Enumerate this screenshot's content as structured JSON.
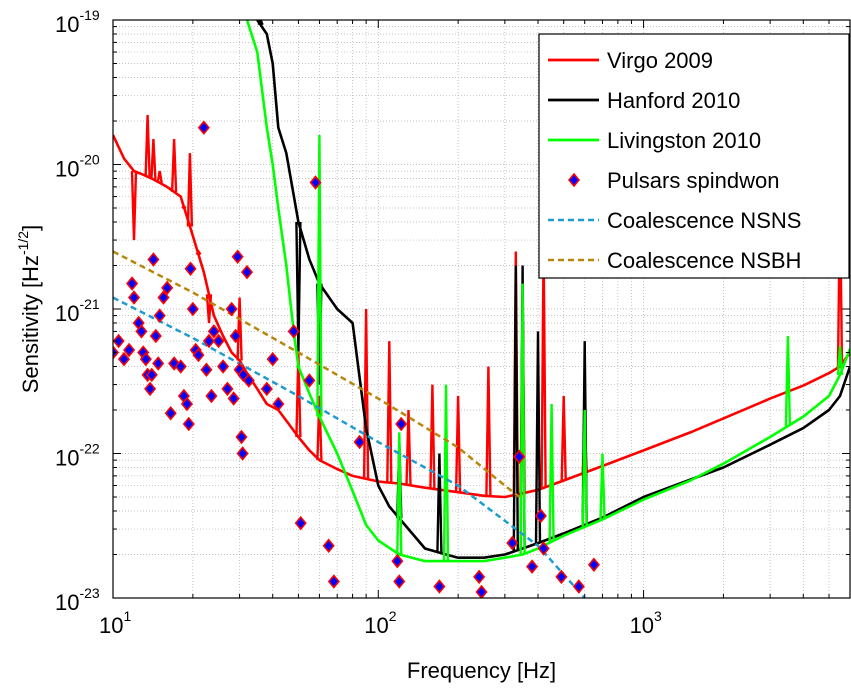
{
  "chart_data": {
    "type": "line",
    "title": "",
    "xlabel": "Frequency [Hz]",
    "ylabel": "Sensitivity [Hz",
    "ylabel_sup": "-1/2",
    "ylabel_end": "]",
    "xscale": "log",
    "yscale": "log",
    "xlim": [
      10,
      6000
    ],
    "ylim": [
      1e-23,
      1e-19
    ],
    "grid": true,
    "legend_position": "top-right",
    "x_ticks": [
      {
        "value": 10,
        "base": "10",
        "exp": "1"
      },
      {
        "value": 100,
        "base": "10",
        "exp": "2"
      },
      {
        "value": 1000,
        "base": "10",
        "exp": "3"
      }
    ],
    "y_ticks": [
      {
        "value": 1e-23,
        "base": "10",
        "exp": "-23"
      },
      {
        "value": 1e-22,
        "base": "10",
        "exp": "-22"
      },
      {
        "value": 1e-21,
        "base": "10",
        "exp": "-21"
      },
      {
        "value": 1e-20,
        "base": "10",
        "exp": "-20"
      },
      {
        "value": 1e-19,
        "base": "10",
        "exp": "-19"
      }
    ],
    "series": [
      {
        "name": "Virgo 2009",
        "kind": "line",
        "color": "#ff0000",
        "style": "solid",
        "points": [
          [
            10,
            1.6e-20
          ],
          [
            11,
            1.1e-20
          ],
          [
            12,
            9e-21
          ],
          [
            13,
            8.5e-21
          ],
          [
            14,
            8e-21
          ],
          [
            16,
            7e-21
          ],
          [
            18,
            6e-21
          ],
          [
            20,
            3.2e-21
          ],
          [
            22,
            1.8e-21
          ],
          [
            24,
            9e-22
          ],
          [
            26,
            6.5e-22
          ],
          [
            28,
            5e-22
          ],
          [
            30,
            4.4e-22
          ],
          [
            32,
            3.6e-22
          ],
          [
            35,
            2.8e-22
          ],
          [
            38,
            2.2e-22
          ],
          [
            42,
            2e-22
          ],
          [
            46,
            1.6e-22
          ],
          [
            50,
            1.3e-22
          ],
          [
            55,
            1.05e-22
          ],
          [
            60,
            9e-23
          ],
          [
            70,
            7.8e-23
          ],
          [
            80,
            7e-23
          ],
          [
            100,
            6.4e-23
          ],
          [
            120,
            6.2e-23
          ],
          [
            150,
            5.8e-23
          ],
          [
            200,
            5.4e-23
          ],
          [
            250,
            5.1e-23
          ],
          [
            300,
            5e-23
          ],
          [
            350,
            5.3e-23
          ],
          [
            400,
            5.6e-23
          ],
          [
            500,
            6.5e-23
          ],
          [
            700,
            8.2e-23
          ],
          [
            1000,
            1.05e-22
          ],
          [
            1500,
            1.4e-22
          ],
          [
            2000,
            1.75e-22
          ],
          [
            3000,
            2.4e-22
          ],
          [
            4000,
            2.95e-22
          ],
          [
            5000,
            3.6e-22
          ],
          [
            5500,
            4e-22
          ],
          [
            6000,
            5e-22
          ]
        ],
        "peaks": [
          [
            12,
            3e-21
          ],
          [
            13.5,
            2.2e-20
          ],
          [
            14.2,
            1.5e-20
          ],
          [
            15,
            9e-21
          ],
          [
            17,
            1.5e-20
          ],
          [
            18.5,
            5e-21
          ],
          [
            19.5,
            1.2e-20
          ],
          [
            21,
            2.5e-21
          ],
          [
            23,
            8e-22
          ],
          [
            30,
            1.2e-21
          ],
          [
            50,
            5e-22
          ],
          [
            60,
            2.5e-22
          ],
          [
            90,
            1e-21
          ],
          [
            110,
            6e-22
          ],
          [
            130,
            2e-22
          ],
          [
            160,
            3e-22
          ],
          [
            200,
            2.5e-22
          ],
          [
            260,
            4e-22
          ],
          [
            330,
            2.5e-21
          ],
          [
            350,
            1.3e-21
          ],
          [
            420,
            3e-21
          ],
          [
            500,
            2.5e-22
          ],
          [
            600,
            1.5e-22
          ],
          [
            5500,
            6e-21
          ]
        ]
      },
      {
        "name": "Hanford 2010",
        "kind": "line",
        "color": "#000000",
        "style": "solid",
        "points": [
          [
            35,
            1e-19
          ],
          [
            38,
            8e-20
          ],
          [
            40,
            5e-20
          ],
          [
            42,
            1.8e-20
          ],
          [
            45,
            1.2e-20
          ],
          [
            50,
            4e-21
          ],
          [
            55,
            2.2e-21
          ],
          [
            60,
            1.5e-21
          ],
          [
            70,
            1e-21
          ],
          [
            80,
            8e-22
          ],
          [
            90,
            1.5e-22
          ],
          [
            100,
            6e-23
          ],
          [
            110,
            4.3e-23
          ],
          [
            130,
            3e-23
          ],
          [
            150,
            2.2e-23
          ],
          [
            180,
            2e-23
          ],
          [
            200,
            1.9e-23
          ],
          [
            250,
            1.9e-23
          ],
          [
            300,
            2e-23
          ],
          [
            350,
            2.2e-23
          ],
          [
            400,
            2.4e-23
          ],
          [
            500,
            2.8e-23
          ],
          [
            700,
            3.6e-23
          ],
          [
            1000,
            5e-23
          ],
          [
            1500,
            6.6e-23
          ],
          [
            2000,
            8e-23
          ],
          [
            3000,
            1.15e-22
          ],
          [
            4000,
            1.5e-22
          ],
          [
            5000,
            2e-22
          ],
          [
            5500,
            2.5e-22
          ],
          [
            6000,
            4e-22
          ]
        ],
        "peaks": [
          [
            36,
            1e-19
          ],
          [
            50,
            5e-22
          ],
          [
            60,
            3e-22
          ],
          [
            120,
            1.2e-22
          ],
          [
            170,
            1e-22
          ],
          [
            330,
            2e-21
          ],
          [
            350,
            2e-21
          ],
          [
            400,
            7e-22
          ],
          [
            600,
            6e-22
          ]
        ]
      },
      {
        "name": "Livingston 2010",
        "kind": "line",
        "color": "#00ff00",
        "style": "solid",
        "points": [
          [
            32,
            1e-19
          ],
          [
            35,
            6e-20
          ],
          [
            38,
            1.8e-20
          ],
          [
            40,
            1e-20
          ],
          [
            42,
            5e-21
          ],
          [
            45,
            2e-21
          ],
          [
            48,
            7e-22
          ],
          [
            50,
            4e-22
          ],
          [
            55,
            2.6e-22
          ],
          [
            60,
            1.8e-22
          ],
          [
            70,
            1e-22
          ],
          [
            80,
            5.5e-23
          ],
          [
            90,
            3.2e-23
          ],
          [
            100,
            2.5e-23
          ],
          [
            120,
            2e-23
          ],
          [
            150,
            1.8e-23
          ],
          [
            200,
            1.8e-23
          ],
          [
            250,
            1.8e-23
          ],
          [
            300,
            1.9e-23
          ],
          [
            350,
            2e-23
          ],
          [
            400,
            2.2e-23
          ],
          [
            500,
            2.7e-23
          ],
          [
            700,
            3.5e-23
          ],
          [
            1000,
            4.8e-23
          ],
          [
            1500,
            6.5e-23
          ],
          [
            2000,
            8.5e-23
          ],
          [
            3000,
            1.3e-22
          ],
          [
            4000,
            1.8e-22
          ],
          [
            5000,
            2.5e-22
          ],
          [
            5500,
            3.5e-22
          ],
          [
            6000,
            5.3e-22
          ]
        ],
        "peaks": [
          [
            50,
            4e-22
          ],
          [
            60,
            1.6e-20
          ],
          [
            120,
            1.4e-22
          ],
          [
            180,
            3e-22
          ],
          [
            350,
            1.5e-21
          ],
          [
            450,
            2.2e-22
          ],
          [
            600,
            2e-22
          ],
          [
            700,
            1e-22
          ],
          [
            3500,
            6.5e-22
          ],
          [
            5500,
            5.5e-22
          ]
        ]
      },
      {
        "name": "Pulsars spindwon",
        "kind": "scatter",
        "color": "#0000ff",
        "edge_color": "#ff0000",
        "points": [
          [
            10,
            5e-22
          ],
          [
            10.5,
            6e-22
          ],
          [
            11,
            4.5e-22
          ],
          [
            11.5,
            5.2e-22
          ],
          [
            11.8,
            1.5e-21
          ],
          [
            12,
            1.2e-21
          ],
          [
            12.5,
            8e-22
          ],
          [
            12.8,
            7e-22
          ],
          [
            13,
            5e-22
          ],
          [
            13.3,
            4.5e-22
          ],
          [
            13.5,
            3.5e-22
          ],
          [
            13.8,
            2.8e-22
          ],
          [
            14,
            3.5e-22
          ],
          [
            14.2,
            2.2e-21
          ],
          [
            14.5,
            6.5e-22
          ],
          [
            14.8,
            4.2e-22
          ],
          [
            15,
            9e-22
          ],
          [
            15.5,
            1.2e-21
          ],
          [
            16,
            1.4e-21
          ],
          [
            16.5,
            1.9e-22
          ],
          [
            17,
            4.2e-22
          ],
          [
            18,
            4e-22
          ],
          [
            18.5,
            2.5e-22
          ],
          [
            19,
            2.2e-22
          ],
          [
            19.3,
            1.6e-22
          ],
          [
            19.6,
            1.9e-21
          ],
          [
            20,
            1e-21
          ],
          [
            20.5,
            5.2e-22
          ],
          [
            21,
            4.8e-22
          ],
          [
            22,
            1.8e-20
          ],
          [
            22.5,
            3.8e-22
          ],
          [
            23,
            6e-22
          ],
          [
            23.5,
            2.5e-22
          ],
          [
            24,
            7e-22
          ],
          [
            25,
            6e-22
          ],
          [
            26,
            4e-22
          ],
          [
            27,
            2.8e-22
          ],
          [
            28,
            1e-21
          ],
          [
            28.5,
            2.4e-22
          ],
          [
            29,
            6.5e-22
          ],
          [
            29.5,
            2.3e-21
          ],
          [
            30,
            3.8e-22
          ],
          [
            30.5,
            1.3e-22
          ],
          [
            30.8,
            1e-22
          ],
          [
            31,
            3.5e-22
          ],
          [
            32,
            1.8e-21
          ],
          [
            32.5,
            3.2e-22
          ],
          [
            38,
            2.8e-22
          ],
          [
            40,
            4.5e-22
          ],
          [
            42,
            2.2e-22
          ],
          [
            48,
            7e-22
          ],
          [
            51,
            3.3e-23
          ],
          [
            55,
            3.2e-22
          ],
          [
            58,
            7.5e-21
          ],
          [
            65,
            2.3e-23
          ],
          [
            68,
            1.3e-23
          ],
          [
            85,
            1.2e-22
          ],
          [
            118,
            1.8e-23
          ],
          [
            120,
            1.3e-23
          ],
          [
            122,
            1.6e-22
          ],
          [
            170,
            1.2e-23
          ],
          [
            240,
            1.4e-23
          ],
          [
            245,
            1.1e-23
          ],
          [
            320,
            2.4e-23
          ],
          [
            340,
            9.5e-23
          ],
          [
            380,
            1.65e-23
          ],
          [
            410,
            3.7e-23
          ],
          [
            420,
            2.2e-23
          ],
          [
            490,
            1.4e-23
          ],
          [
            570,
            1.2e-23
          ],
          [
            650,
            1.7e-23
          ]
        ]
      },
      {
        "name": "Coalescence NSNS",
        "kind": "line",
        "color": "#1f9bcf",
        "style": "dashed",
        "points": [
          [
            10,
            1.2e-21
          ],
          [
            20,
            6.3e-22
          ],
          [
            50,
            2.5e-22
          ],
          [
            100,
            1.2e-22
          ],
          [
            200,
            6e-23
          ],
          [
            400,
            2.3e-23
          ],
          [
            600,
            1e-23
          ]
        ]
      },
      {
        "name": "Coalescence NSBH",
        "kind": "line",
        "color": "#b8860b",
        "style": "dashed",
        "points": [
          [
            10,
            2.5e-21
          ],
          [
            20,
            1.3e-21
          ],
          [
            50,
            5e-22
          ],
          [
            100,
            2.4e-22
          ],
          [
            200,
            1.1e-22
          ],
          [
            300,
            6e-23
          ],
          [
            350,
            4.8e-23
          ]
        ]
      }
    ]
  }
}
